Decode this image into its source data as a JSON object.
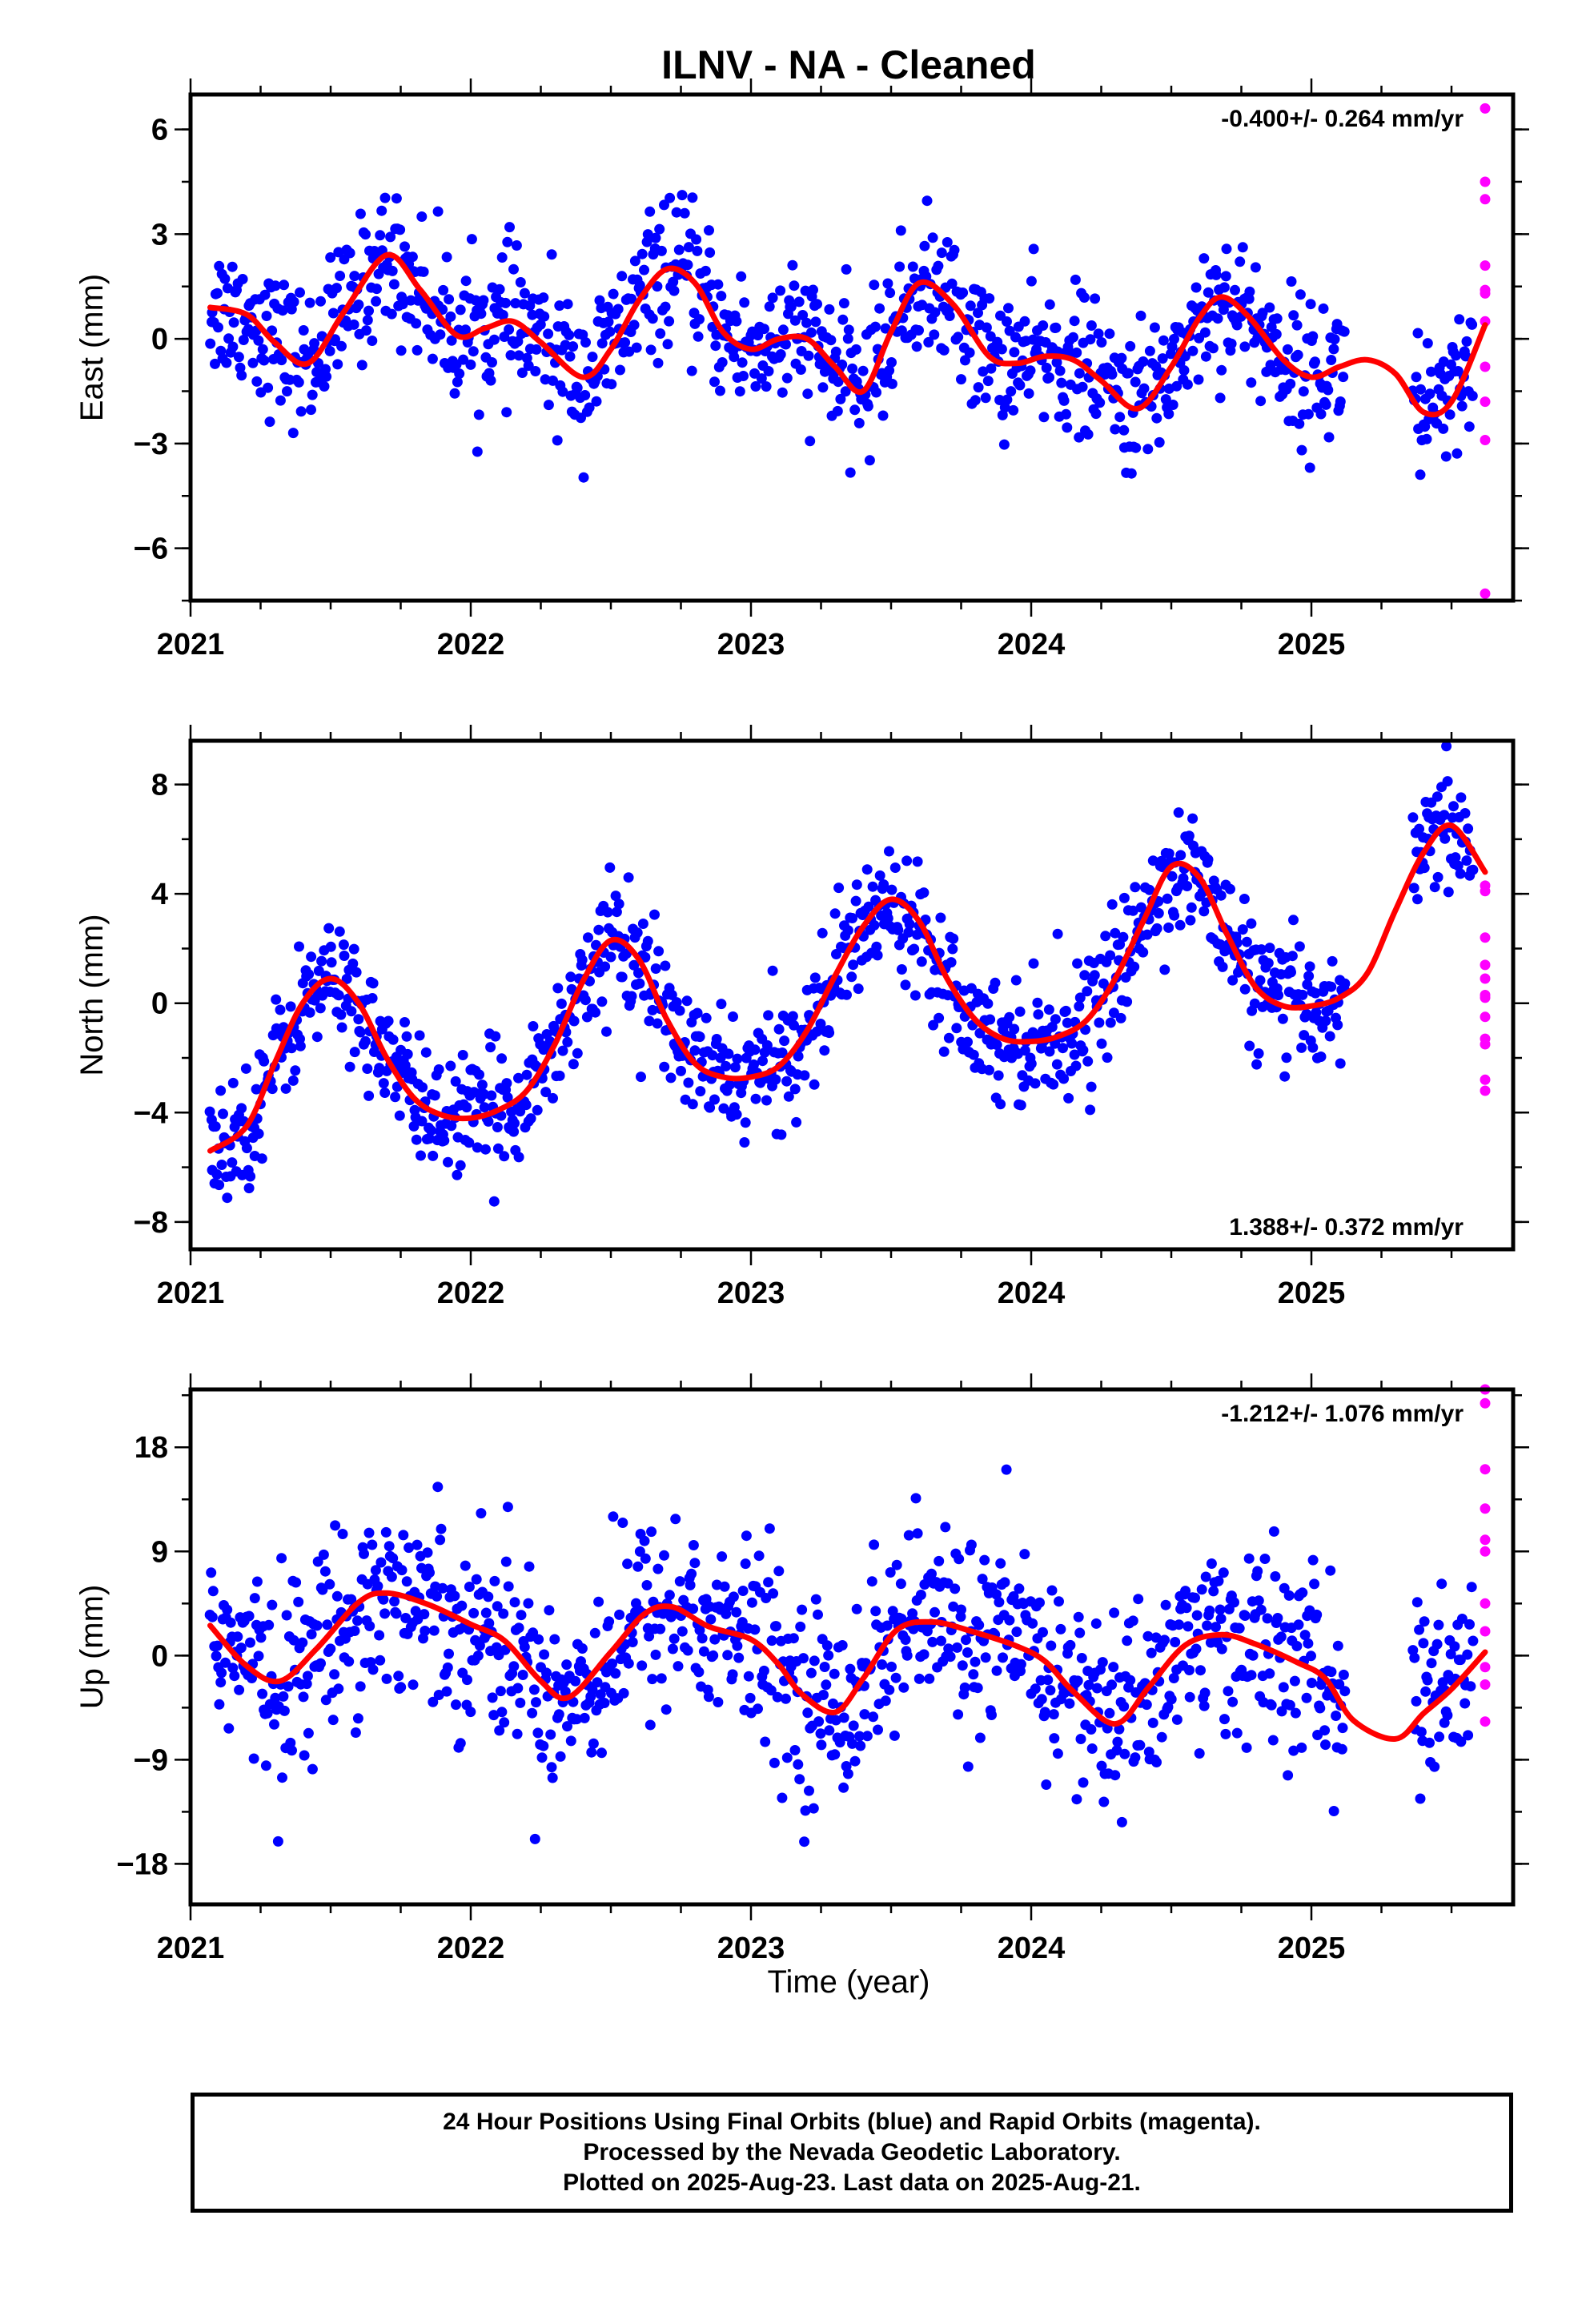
{
  "title": "ILNV  - NA - Cleaned",
  "x_axis_label": "Time (year)",
  "footer": {
    "line1": "24 Hour Positions Using Final Orbits (blue) and Rapid Orbits (magenta).",
    "line2": "Processed by the Nevada Geodetic Laboratory.",
    "line3": "Plotted on 2025-Aug-23. Last data on 2025-Aug-21."
  },
  "colors": {
    "final": "#0000ff",
    "rapid": "#ff00ff",
    "model": "#ff0000",
    "frame": "#000000"
  },
  "chart_data": [
    {
      "type": "scatter",
      "ylabel": "East (mm)",
      "rate_text": "-0.400+/- 0.264 mm/yr",
      "xlim": [
        2021.0,
        2025.72
      ],
      "ylim": [
        -7.5,
        7.0
      ],
      "x_ticks": [
        "2021",
        "2022",
        "2023",
        "2024",
        "2025"
      ],
      "y_ticks": [
        6,
        3,
        0,
        -3,
        -6
      ],
      "y_tick_labels": [
        "6",
        "3",
        "0",
        "−3",
        "−6"
      ],
      "rapid_x": 2025.62,
      "rapid_values": [
        6.6,
        4.5,
        4.0,
        2.1,
        1.4,
        1.3,
        0.5,
        -0.8,
        -1.8,
        -2.9,
        -7.3
      ],
      "model": {
        "x": [
          2021.07,
          2021.2,
          2021.3,
          2021.42,
          2021.55,
          2021.7,
          2021.82,
          2021.95,
          2022.05,
          2022.15,
          2022.25,
          2022.4,
          2022.5,
          2022.6,
          2022.7,
          2022.8,
          2022.9,
          2023.0,
          2023.1,
          2023.2,
          2023.3,
          2023.4,
          2023.5,
          2023.6,
          2023.72,
          2023.85,
          2023.95,
          2024.05,
          2024.15,
          2024.25,
          2024.38,
          2024.5,
          2024.6,
          2024.68,
          2024.78,
          2024.9,
          2025.0,
          2025.1,
          2025.2,
          2025.3,
          2025.4,
          2025.5,
          2025.62
        ],
        "y": [
          0.9,
          0.7,
          -0.1,
          -0.7,
          0.8,
          2.4,
          1.4,
          0.1,
          0.3,
          0.5,
          -0.1,
          -1.1,
          -0.3,
          1.1,
          2.0,
          1.6,
          0.2,
          -0.3,
          0.0,
          0.0,
          -0.8,
          -1.5,
          0.2,
          1.6,
          1.0,
          -0.5,
          -0.7,
          -0.5,
          -0.6,
          -1.2,
          -2.0,
          -0.8,
          0.6,
          1.2,
          0.6,
          -0.6,
          -1.1,
          -0.8,
          -0.6,
          -1.0,
          -2.1,
          -1.8,
          0.4
        ]
      },
      "final_gen": {
        "amplitude": 1.6,
        "noise": 1.0,
        "count": 1100
      }
    },
    {
      "type": "scatter",
      "ylabel": "North (mm)",
      "rate_text": "1.388+/- 0.372 mm/yr",
      "xlim": [
        2021.0,
        2025.72
      ],
      "ylim": [
        -9.0,
        9.6
      ],
      "x_ticks": [
        "2021",
        "2022",
        "2023",
        "2024",
        "2025"
      ],
      "y_ticks": [
        8,
        4,
        0,
        -4,
        -8
      ],
      "y_tick_labels": [
        "8",
        "4",
        "0",
        "−4",
        "−8"
      ],
      "rapid_x": 2025.62,
      "rapid_values": [
        4.3,
        4.1,
        2.4,
        1.4,
        0.9,
        0.3,
        0.2,
        -0.5,
        -1.3,
        -1.5,
        -2.8,
        -3.2
      ],
      "model": {
        "x": [
          2021.07,
          2021.2,
          2021.3,
          2021.4,
          2021.5,
          2021.6,
          2021.7,
          2021.8,
          2021.9,
          2022.0,
          2022.1,
          2022.2,
          2022.3,
          2022.4,
          2022.5,
          2022.6,
          2022.7,
          2022.8,
          2022.9,
          2023.0,
          2023.1,
          2023.2,
          2023.3,
          2023.4,
          2023.5,
          2023.6,
          2023.7,
          2023.8,
          2023.9,
          2024.0,
          2024.1,
          2024.2,
          2024.3,
          2024.4,
          2024.5,
          2024.6,
          2024.7,
          2024.8,
          2024.9,
          2025.0,
          2025.1,
          2025.2,
          2025.3,
          2025.4,
          2025.5,
          2025.62
        ],
        "y": [
          -5.4,
          -4.5,
          -2.2,
          0.0,
          0.9,
          0.0,
          -2.0,
          -3.5,
          -4.1,
          -4.2,
          -3.9,
          -3.2,
          -1.5,
          0.8,
          2.3,
          1.6,
          -0.6,
          -2.2,
          -2.7,
          -2.7,
          -2.3,
          -1.0,
          1.0,
          2.8,
          3.8,
          3.0,
          0.9,
          -0.6,
          -1.3,
          -1.4,
          -1.2,
          -0.6,
          0.9,
          3.0,
          5.0,
          4.6,
          2.5,
          0.6,
          -0.1,
          -0.1,
          0.2,
          1.1,
          3.4,
          5.5,
          6.5,
          4.8
        ]
      },
      "final_gen": {
        "amplitude": 1.8,
        "noise": 1.1,
        "count": 1100
      }
    },
    {
      "type": "scatter",
      "ylabel": "Up (mm)",
      "rate_text": "-1.212+/- 1.076 mm/yr",
      "xlim": [
        2021.0,
        2025.72
      ],
      "ylim": [
        -21.5,
        23.0
      ],
      "x_ticks": [
        "2021",
        "2022",
        "2023",
        "2024",
        "2025"
      ],
      "y_ticks": [
        18,
        9,
        0,
        -9,
        -18
      ],
      "y_tick_labels": [
        "18",
        "9",
        "0",
        "−9",
        "−18"
      ],
      "rapid_x": 2025.62,
      "rapid_values": [
        23.0,
        21.8,
        16.1,
        12.7,
        10.0,
        9.0,
        4.5,
        2.1,
        -1.0,
        -2.5,
        -5.7
      ],
      "model": {
        "x": [
          2021.07,
          2021.2,
          2021.32,
          2021.45,
          2021.6,
          2021.7,
          2021.85,
          2022.0,
          2022.12,
          2022.25,
          2022.35,
          2022.5,
          2022.62,
          2022.72,
          2022.85,
          2023.0,
          2023.1,
          2023.18,
          2023.3,
          2023.4,
          2023.52,
          2023.65,
          2023.8,
          2023.95,
          2024.05,
          2024.15,
          2024.3,
          2024.42,
          2024.55,
          2024.68,
          2024.8,
          2024.95,
          2025.05,
          2025.15,
          2025.3,
          2025.4,
          2025.5,
          2025.62
        ],
        "y": [
          2.6,
          -0.9,
          -2.2,
          0.6,
          4.6,
          5.4,
          4.4,
          2.7,
          1.3,
          -2.2,
          -3.6,
          0.3,
          3.6,
          4.2,
          2.5,
          1.4,
          -0.8,
          -3.3,
          -4.9,
          -2.0,
          2.2,
          2.9,
          2.0,
          0.8,
          -0.5,
          -3.1,
          -5.9,
          -2.7,
          0.9,
          1.8,
          1.0,
          -0.6,
          -2.0,
          -5.6,
          -7.2,
          -5.0,
          -2.9,
          0.3
        ]
      },
      "final_gen": {
        "amplitude": 3.0,
        "noise": 4.2,
        "count": 1100
      }
    }
  ]
}
